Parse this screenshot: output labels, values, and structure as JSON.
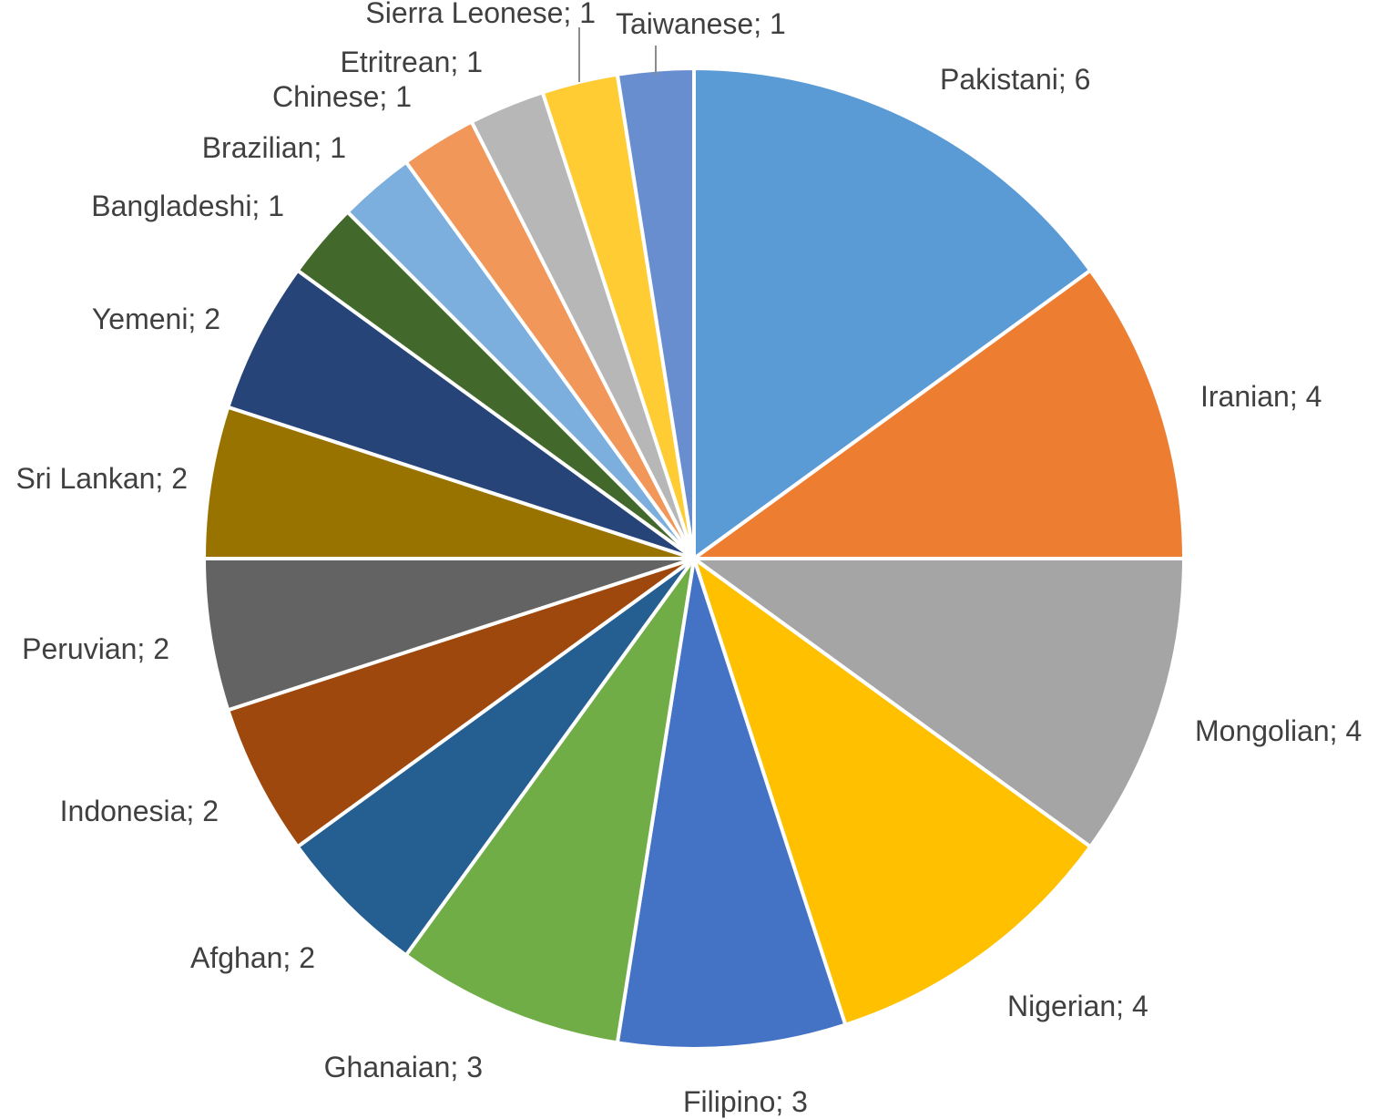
{
  "chart_data": {
    "type": "pie",
    "title": "",
    "label_format": "{category}; {value}",
    "start_angle_deg": 0,
    "direction": "clockwise",
    "slices": [
      {
        "category": "Pakistani",
        "value": 6,
        "color": "#5B9BD5",
        "label_text": "Pakistani; 6"
      },
      {
        "category": "Iranian",
        "value": 4,
        "color": "#ED7D31",
        "label_text": "Iranian; 4"
      },
      {
        "category": "Mongolian",
        "value": 4,
        "color": "#A5A5A5",
        "label_text": "Mongolian; 4"
      },
      {
        "category": "Nigerian",
        "value": 4,
        "color": "#FFC000",
        "label_text": "Nigerian; 4"
      },
      {
        "category": "Filipino",
        "value": 3,
        "color": "#4472C4",
        "label_text": "Filipino; 3"
      },
      {
        "category": "Ghanaian",
        "value": 3,
        "color": "#70AD47",
        "label_text": "Ghanaian; 3"
      },
      {
        "category": "Afghan",
        "value": 2,
        "color": "#255E91",
        "label_text": "Afghan; 2"
      },
      {
        "category": "Indonesia",
        "value": 2,
        "color": "#9E480E",
        "label_text": "Indonesia; 2"
      },
      {
        "category": "Peruvian",
        "value": 2,
        "color": "#636363",
        "label_text": "Peruvian; 2"
      },
      {
        "category": "Sri Lankan",
        "value": 2,
        "color": "#997300",
        "label_text": "Sri Lankan; 2"
      },
      {
        "category": "Yemeni",
        "value": 2,
        "color": "#264478",
        "label_text": "Yemeni; 2"
      },
      {
        "category": "Bangladeshi",
        "value": 1,
        "color": "#43682B",
        "label_text": "Bangladeshi; 1"
      },
      {
        "category": "Brazilian",
        "value": 1,
        "color": "#7CAFDD",
        "label_text": "Brazilian; 1"
      },
      {
        "category": "Chinese",
        "value": 1,
        "color": "#F1975A",
        "label_text": "Chinese; 1"
      },
      {
        "category": "Etritrean",
        "value": 1,
        "color": "#B7B7B7",
        "label_text": "Etritrean; 1"
      },
      {
        "category": "Sierra Leonese",
        "value": 1,
        "color": "#FFCD33",
        "label_text": "Sierra Leonese; 1"
      },
      {
        "category": "Taiwanese",
        "value": 1,
        "color": "#698ED0",
        "label_text": "Taiwanese; 1"
      }
    ]
  }
}
